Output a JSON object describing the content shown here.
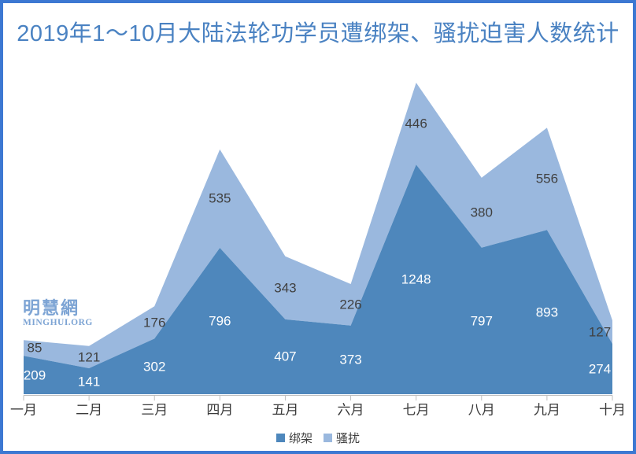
{
  "title": "2019年1～10月大陆法轮功学员遭绑架、骚扰迫害人数统计",
  "watermark": {
    "cjk": "明慧網",
    "latin": "MINGHUI.ORG"
  },
  "colors": {
    "frame": "#3c78d2",
    "title": "#4a82c2",
    "series_dark": "#4e87bc",
    "series_light": "#9ab8de",
    "label_on_dark": "#ffffff",
    "label_on_light": "#404040",
    "axis_line": "#bfbfbf",
    "axis_text": "#3a3a3a",
    "watermark": "#7da4d4",
    "background": "#ffffff"
  },
  "chart_data": {
    "type": "area",
    "stacked": true,
    "title": "2019年1～10月大陆法轮功学员遭绑架、骚扰迫害人数统计",
    "categories": [
      "一月",
      "二月",
      "三月",
      "四月",
      "五月",
      "六月",
      "七月",
      "八月",
      "九月",
      "十月"
    ],
    "series": [
      {
        "name": "绑架",
        "values": [
          209,
          141,
          302,
          796,
          407,
          373,
          1248,
          797,
          893,
          274
        ]
      },
      {
        "name": "骚扰",
        "values": [
          85,
          121,
          176,
          535,
          343,
          226,
          446,
          380,
          556,
          127
        ]
      }
    ],
    "stacked_totals": [
      294,
      262,
      478,
      1331,
      750,
      599,
      1694,
      1177,
      1449,
      401
    ],
    "data_labels_visible": true,
    "xlabel": "",
    "ylabel": "",
    "ylim": [
      0,
      1800
    ],
    "y_axis_visible": false,
    "grid": false,
    "legend_position": "bottom"
  }
}
